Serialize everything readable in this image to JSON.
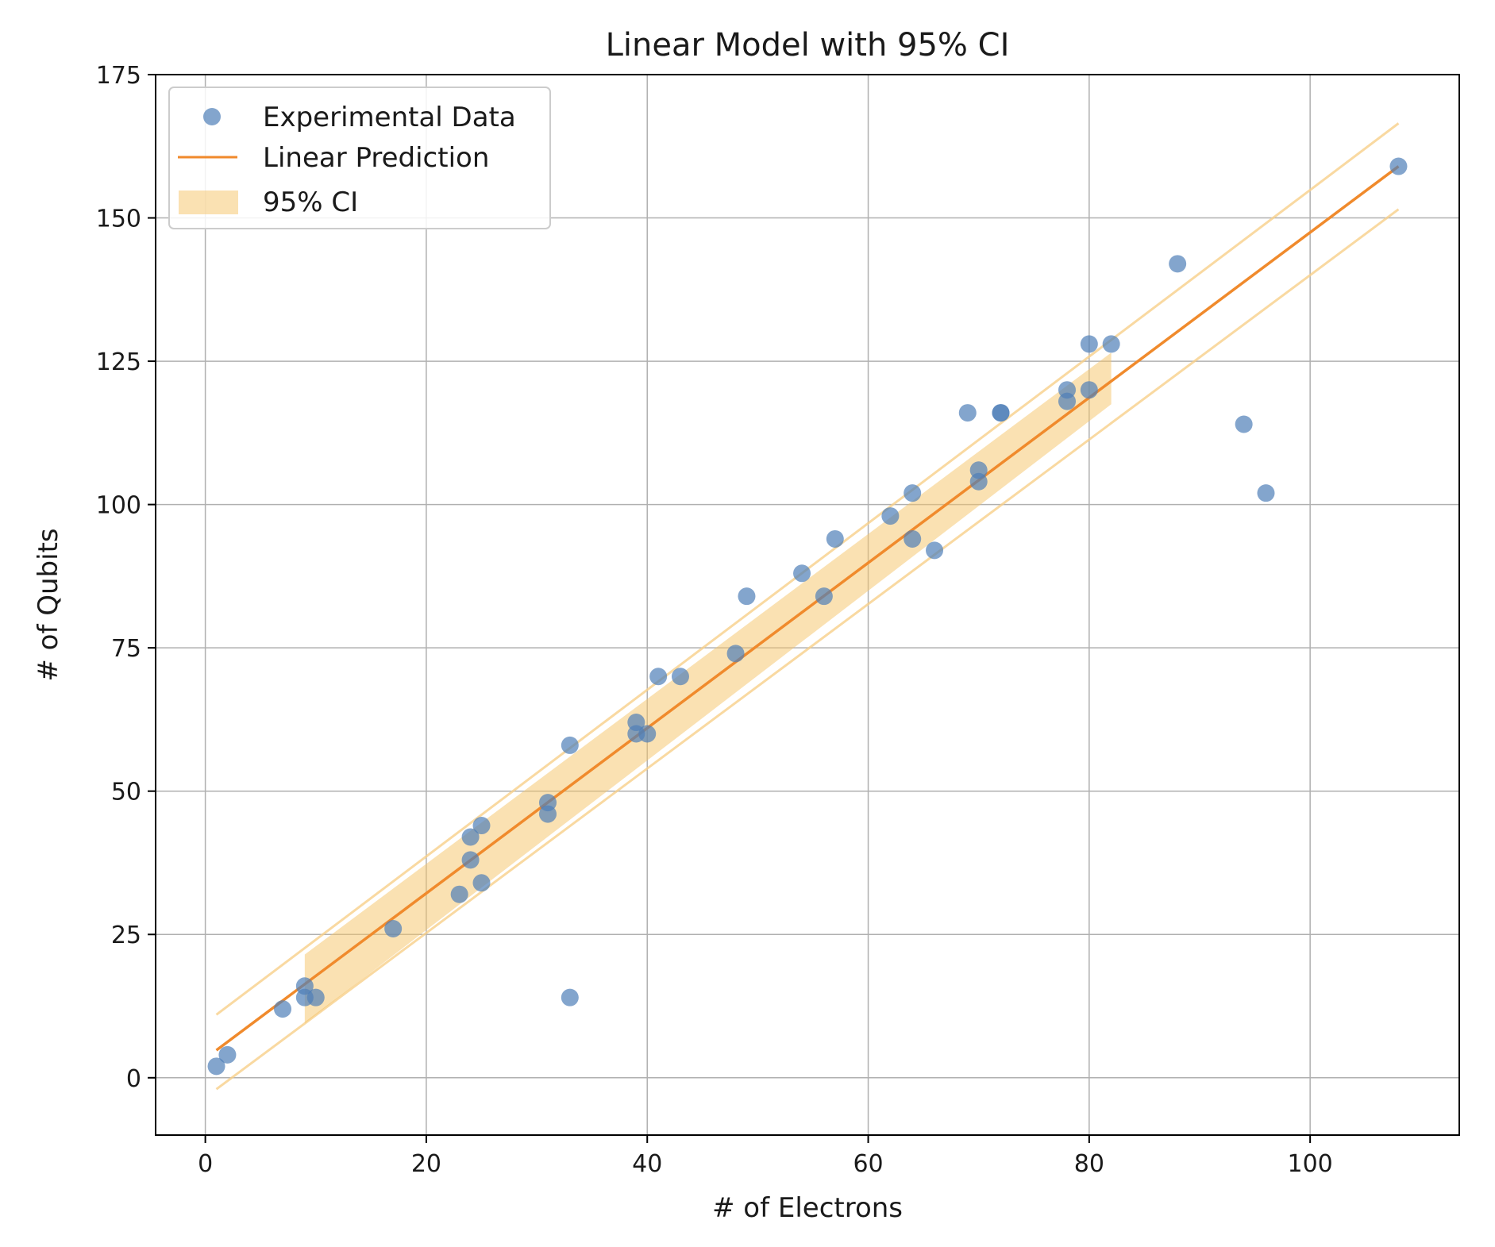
{
  "chart_data": {
    "type": "scatter",
    "title": "Linear Model with 95% CI",
    "xlabel": "# of Electrons",
    "ylabel": "# of Qubits",
    "xlim": [
      -4.5,
      113.5
    ],
    "ylim": [
      -10,
      175
    ],
    "xticks": [
      0,
      20,
      40,
      60,
      80,
      100
    ],
    "yticks": [
      0,
      25,
      50,
      75,
      100,
      125,
      150,
      175
    ],
    "grid": true,
    "legend_position": "top-left",
    "legend": [
      {
        "key": "scatter",
        "label": "Experimental Data"
      },
      {
        "key": "line",
        "label": "Linear Prediction"
      },
      {
        "key": "band",
        "label": "95% CI"
      }
    ],
    "colors": {
      "scatter": "#4f7fb8",
      "line": "#f08a2c",
      "band": "#f5c466",
      "prediction_interval": "#f7cf8a",
      "grid": "#b0b0b0",
      "axis": "#000000"
    },
    "scatter": {
      "name": "Experimental Data",
      "x": [
        1,
        2,
        7,
        9,
        9,
        10,
        17,
        23,
        24,
        24,
        25,
        25,
        31,
        31,
        33,
        33,
        39,
        39,
        40,
        41,
        43,
        48,
        49,
        54,
        56,
        57,
        62,
        64,
        64,
        66,
        69,
        70,
        70,
        72,
        72,
        78,
        78,
        80,
        80,
        82,
        88,
        94,
        96,
        108
      ],
      "y": [
        2,
        4,
        12,
        16,
        14,
        14,
        26,
        32,
        42,
        38,
        44,
        34,
        48,
        46,
        58,
        14,
        62,
        60,
        60,
        70,
        70,
        74,
        84,
        88,
        84,
        94,
        98,
        102,
        94,
        92,
        116,
        106,
        104,
        116,
        116,
        120,
        118,
        128,
        120,
        128,
        142,
        114,
        102,
        159
      ]
    },
    "linear_prediction": {
      "name": "Linear Prediction",
      "x": [
        1,
        108
      ],
      "y": [
        4.8,
        159
      ]
    },
    "confidence_band": {
      "name": "95% CI",
      "x": [
        9,
        82
      ],
      "lower": [
        9.5,
        117.5
      ],
      "upper": [
        21.5,
        126.5
      ]
    },
    "prediction_interval": {
      "x": [
        1,
        108
      ],
      "lower": [
        -2,
        151.5
      ],
      "upper": [
        11,
        166.5
      ]
    }
  }
}
